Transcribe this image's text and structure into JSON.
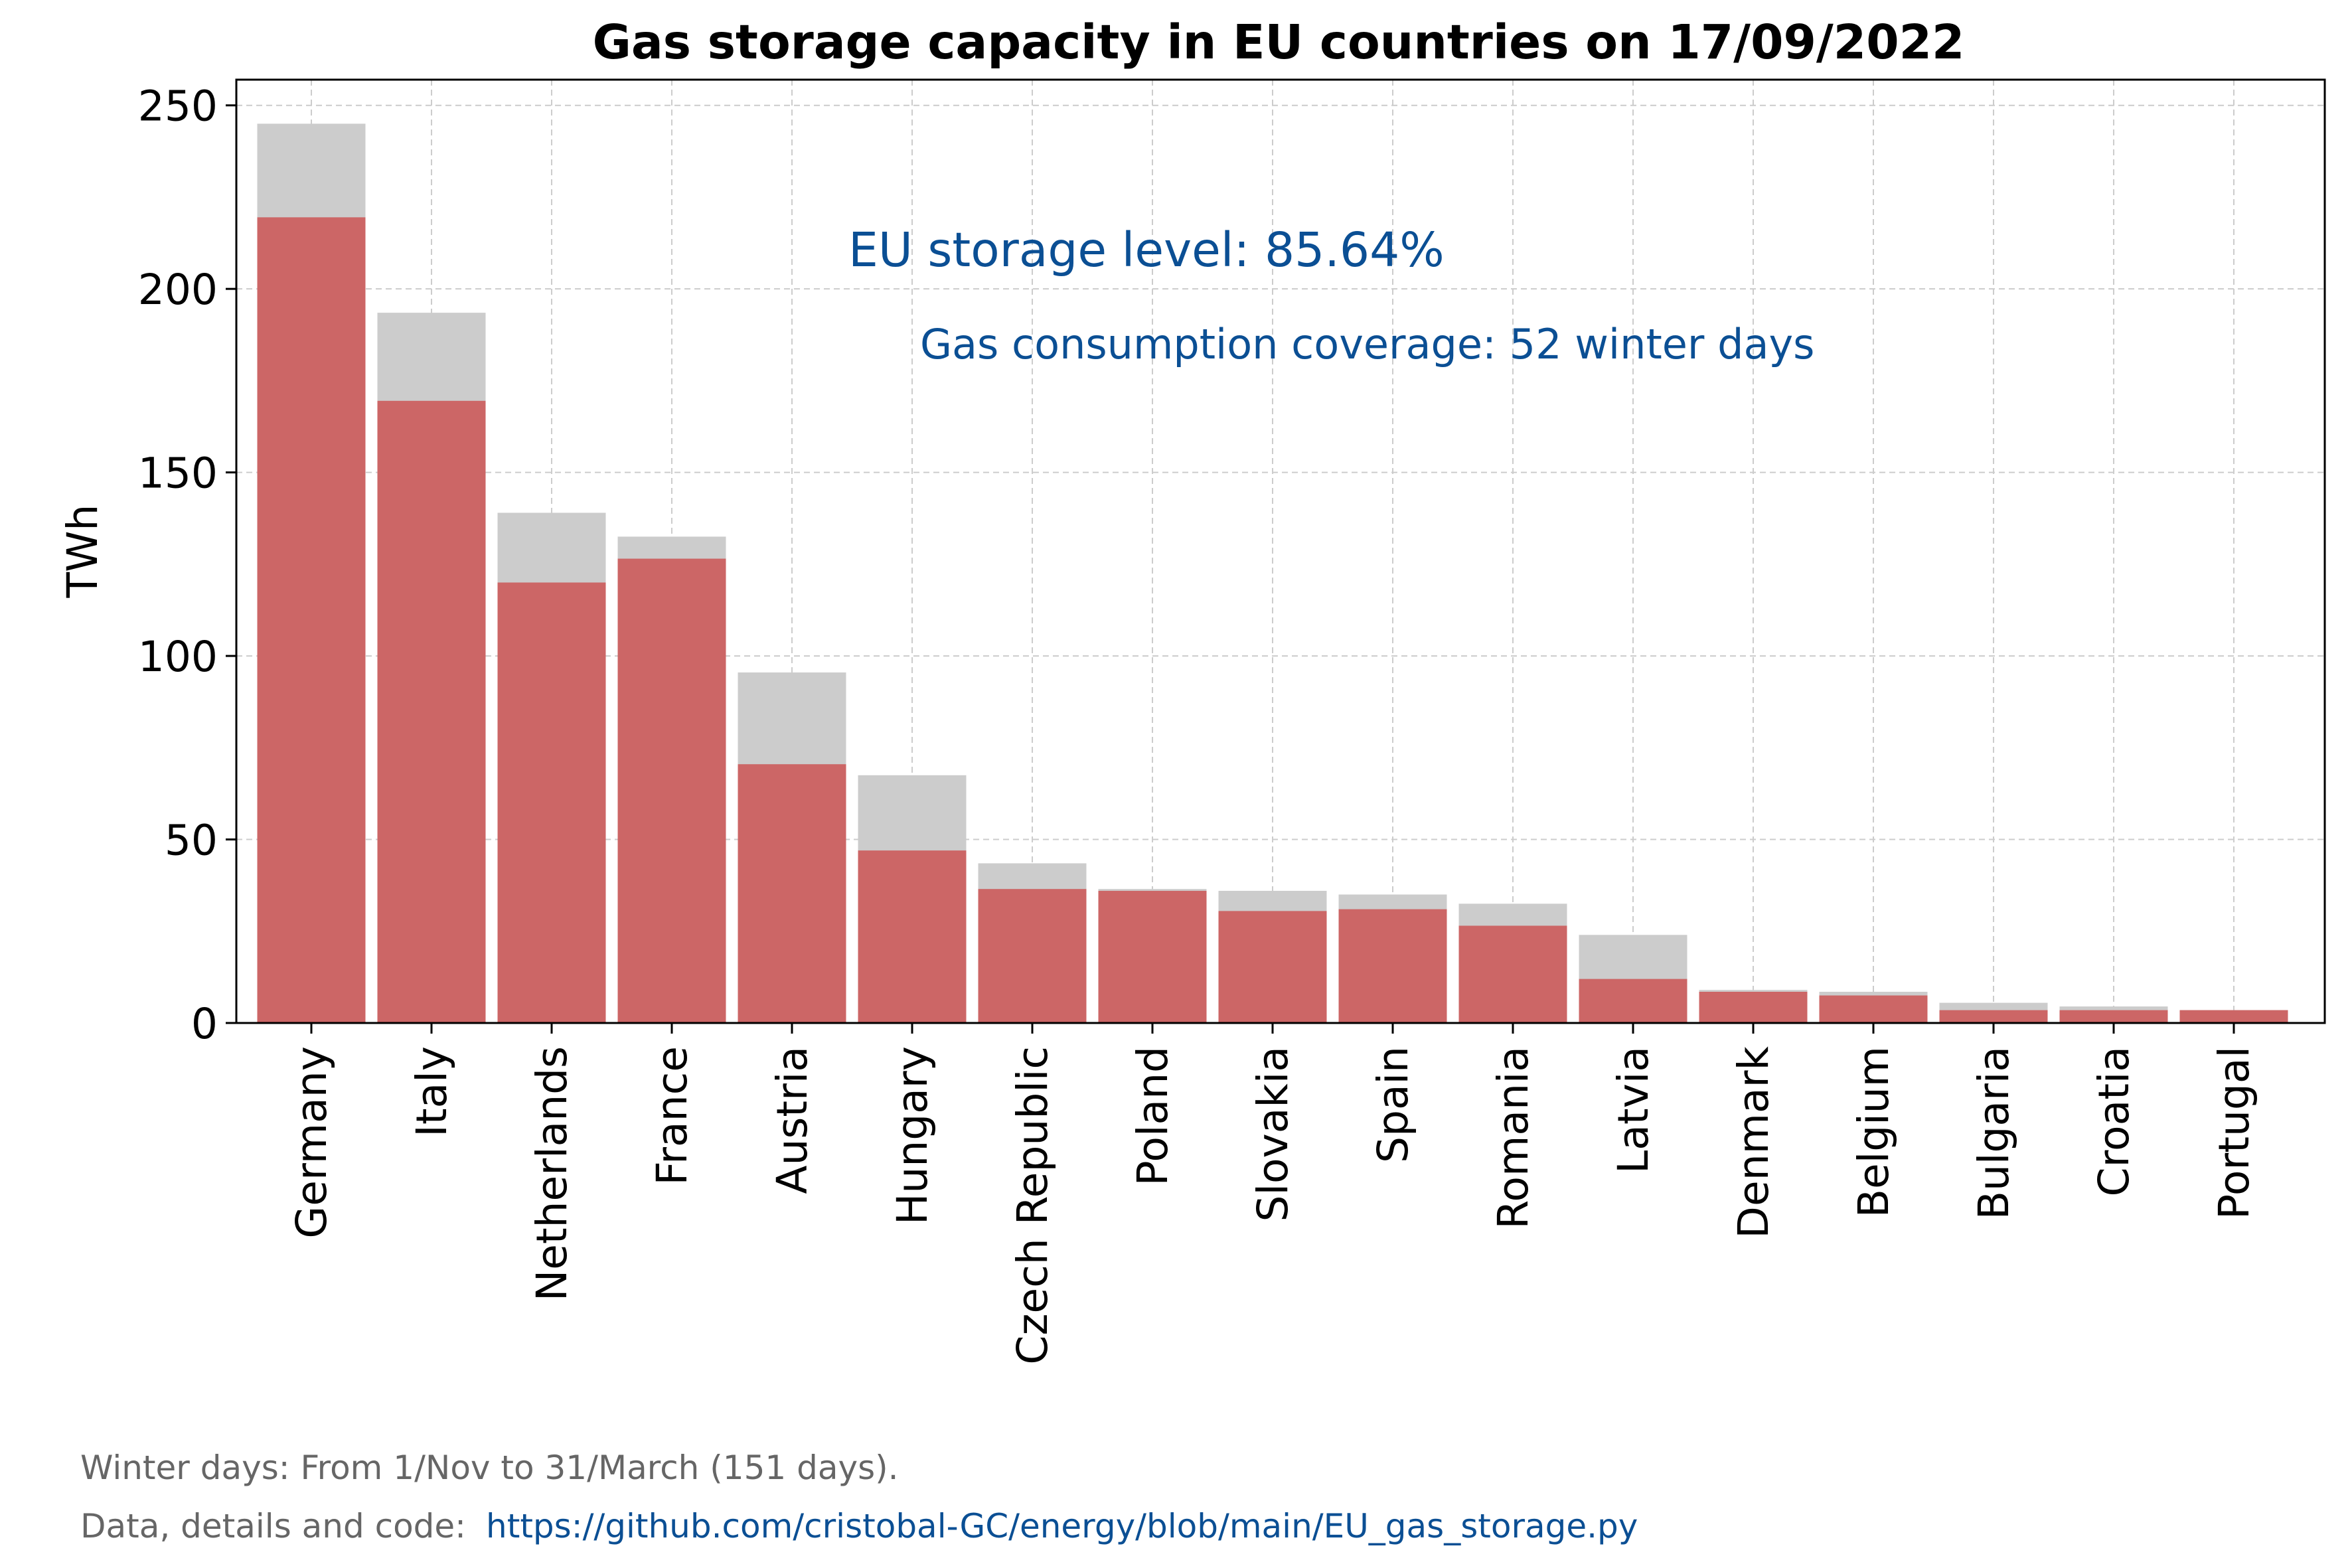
{
  "colors": {
    "stored": "#cc6666",
    "capacity": "#cccccc",
    "annotation": "#0b4f94",
    "grid": "#cccccc",
    "footer_text": "#666666",
    "link": "#0b4f94"
  },
  "chart_data": {
    "type": "bar",
    "title": "Gas storage capacity in EU countries on 17/09/2022",
    "xlabel": "",
    "ylabel": "TWh",
    "ylim": [
      0,
      257
    ],
    "yticks": [
      0,
      50,
      100,
      150,
      200,
      250
    ],
    "grid": true,
    "stacked_overlay": true,
    "categories": [
      "Germany",
      "Italy",
      "Netherlands",
      "France",
      "Austria",
      "Hungary",
      "Czech Republic",
      "Poland",
      "Slovakia",
      "Spain",
      "Romania",
      "Latvia",
      "Denmark",
      "Belgium",
      "Bulgaria",
      "Croatia",
      "Portugal"
    ],
    "series": [
      {
        "key": "capacity",
        "values": [
          245,
          193.5,
          139,
          132.5,
          95.5,
          67.5,
          43.5,
          36.5,
          36,
          35,
          32.5,
          24,
          9,
          8.5,
          5.5,
          4.5,
          3.5
        ]
      },
      {
        "key": "stored",
        "values": [
          219.5,
          169.5,
          120,
          126.5,
          70.5,
          47,
          36.5,
          36,
          30.5,
          31,
          26.5,
          12,
          8.5,
          7.5,
          3.5,
          3.5,
          3.5
        ]
      }
    ],
    "annotations": [
      {
        "text": "EU storage level: 85.64%"
      },
      {
        "text": "Gas consumption coverage: 52 winter days"
      }
    ]
  },
  "footer": {
    "winter_days_note": "Winter days: From 1/Nov to 31/March (151 days).",
    "source_label": "Data, details and code:",
    "source_url": "https://github.com/cristobal-GC/energy/blob/main/EU_gas_storage.py"
  }
}
